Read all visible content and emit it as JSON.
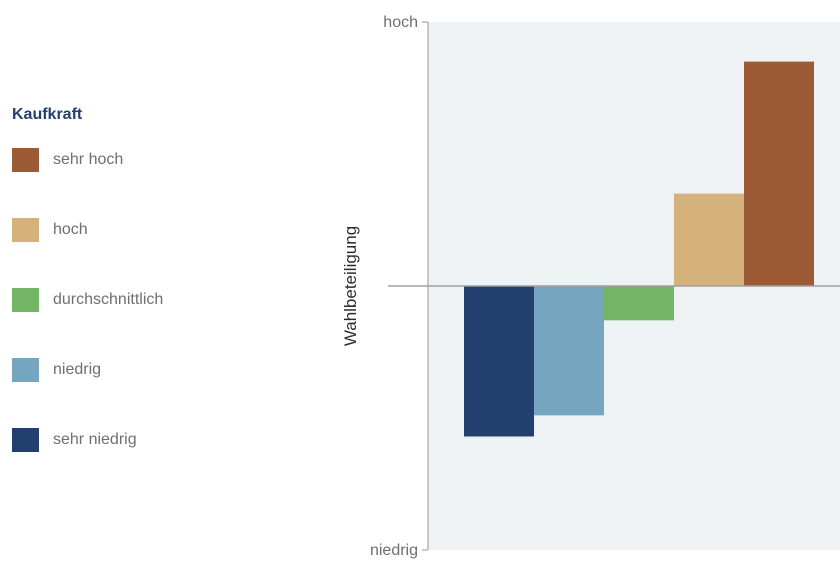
{
  "legend": {
    "title": "Kaufkraft",
    "items": [
      {
        "label": "sehr hoch",
        "color": "#9c5b35"
      },
      {
        "label": "hoch",
        "color": "#d5b17b"
      },
      {
        "label": "durchschnittlich",
        "color": "#72b665"
      },
      {
        "label": "niedrig",
        "color": "#76a5bf"
      },
      {
        "label": "sehr niedrig",
        "color": "#233f6e"
      }
    ]
  },
  "chart_data": {
    "type": "bar",
    "title": "",
    "xlabel": "",
    "ylabel": "Wahlbeteiligung",
    "y_tick_labels": [
      "hoch",
      "niedrig"
    ],
    "ylim": [
      -1,
      1
    ],
    "grid": false,
    "legend_position": "left",
    "categories": [
      "sehr niedrig",
      "niedrig",
      "durchschnittlich",
      "hoch",
      "sehr hoch"
    ],
    "values": [
      -0.57,
      -0.49,
      -0.13,
      0.35,
      0.85
    ],
    "colors": [
      "#233f6e",
      "#76a5bf",
      "#72b665",
      "#d5b17b",
      "#9c5b35"
    ]
  }
}
